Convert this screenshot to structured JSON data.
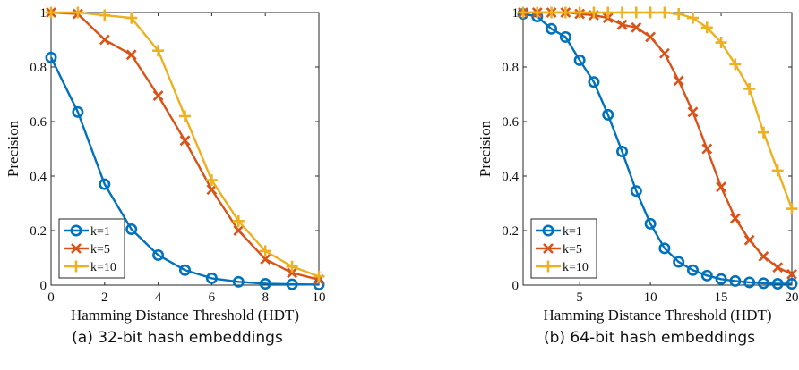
{
  "chart_data": [
    {
      "type": "line",
      "caption": "(a) 32-bit hash embeddings",
      "xlabel": "Hamming Distance Threshold (HDT)",
      "ylabel": "Precision",
      "xlim": [
        0,
        10
      ],
      "ylim": [
        0,
        1
      ],
      "xticks": [
        0,
        2,
        4,
        6,
        8,
        10
      ],
      "yticks": [
        0,
        0.2,
        0.4,
        0.6,
        0.8,
        1
      ],
      "xtick_labels": [
        "0",
        "2",
        "4",
        "6",
        "8",
        "10"
      ],
      "ytick_labels": [
        "0",
        "0.2",
        "0.4",
        "0.6",
        "0.8",
        "1"
      ],
      "legend_position": "bottom-left",
      "grid": false,
      "x": [
        0,
        1,
        2,
        3,
        4,
        5,
        6,
        7,
        8,
        9,
        10
      ],
      "series": [
        {
          "name": "k=1",
          "marker": "circle",
          "color": "#0072BD",
          "values": [
            0.835,
            0.635,
            0.37,
            0.205,
            0.11,
            0.055,
            0.025,
            0.012,
            0.005,
            0.003,
            0.002
          ]
        },
        {
          "name": "k=5",
          "marker": "x",
          "color": "#D95319",
          "values": [
            1.0,
            0.995,
            0.9,
            0.845,
            0.695,
            0.53,
            0.35,
            0.2,
            0.095,
            0.045,
            0.02
          ]
        },
        {
          "name": "k=10",
          "marker": "plus",
          "color": "#EDB120",
          "values": [
            1.0,
            1.0,
            0.99,
            0.98,
            0.86,
            0.62,
            0.385,
            0.235,
            0.125,
            0.068,
            0.032
          ]
        }
      ]
    },
    {
      "type": "line",
      "caption": "(b) 64-bit hash embeddings",
      "xlabel": "Hamming Distance Threshold (HDT)",
      "ylabel": "Precision",
      "xlim": [
        1,
        20
      ],
      "ylim": [
        0,
        1
      ],
      "xticks": [
        5,
        10,
        15,
        20
      ],
      "yticks": [
        0,
        0.2,
        0.4,
        0.6,
        0.8,
        1
      ],
      "xtick_labels": [
        "5",
        "10",
        "15",
        "20"
      ],
      "ytick_labels": [
        "0",
        "0.2",
        "0.4",
        "0.6",
        "0.8",
        "1"
      ],
      "legend_position": "bottom-left",
      "grid": false,
      "x": [
        1,
        2,
        3,
        4,
        5,
        6,
        7,
        8,
        9,
        10,
        11,
        12,
        13,
        14,
        15,
        16,
        17,
        18,
        19,
        20
      ],
      "series": [
        {
          "name": "k=1",
          "marker": "circle",
          "color": "#0072BD",
          "values": [
            0.995,
            0.985,
            0.94,
            0.91,
            0.825,
            0.745,
            0.625,
            0.49,
            0.345,
            0.225,
            0.135,
            0.085,
            0.055,
            0.035,
            0.022,
            0.015,
            0.01,
            0.007,
            0.005,
            0.005
          ]
        },
        {
          "name": "k=5",
          "marker": "x",
          "color": "#D95319",
          "values": [
            1.0,
            1.0,
            1.0,
            1.0,
            0.995,
            0.99,
            0.98,
            0.955,
            0.945,
            0.91,
            0.85,
            0.75,
            0.635,
            0.5,
            0.36,
            0.245,
            0.165,
            0.105,
            0.065,
            0.04
          ]
        },
        {
          "name": "k=10",
          "marker": "plus",
          "color": "#EDB120",
          "values": [
            1.0,
            1.0,
            1.0,
            1.0,
            1.0,
            1.0,
            1.0,
            1.0,
            1.0,
            1.0,
            1.0,
            0.995,
            0.98,
            0.945,
            0.89,
            0.81,
            0.72,
            0.56,
            0.42,
            0.28
          ]
        }
      ]
    }
  ]
}
